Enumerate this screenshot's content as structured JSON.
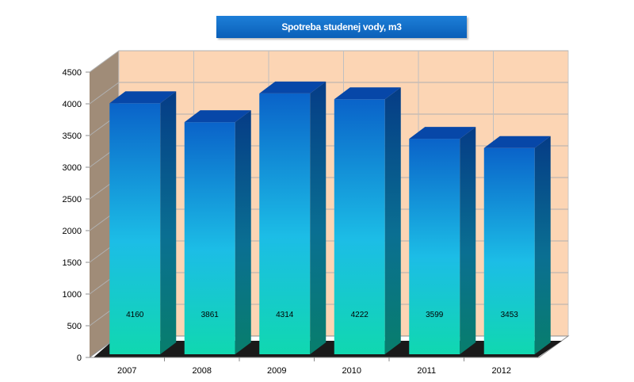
{
  "chart_data": {
    "type": "bar",
    "title": "Spotreba studenej vody, m3",
    "categories": [
      "2007",
      "2008",
      "2009",
      "2010",
      "2011",
      "2012"
    ],
    "values": [
      4160,
      3861,
      4314,
      4222,
      3599,
      3453
    ],
    "data_labels": [
      "4160",
      "3861",
      "4314",
      "4222",
      "3599",
      "3453"
    ],
    "ylim": [
      0,
      4500
    ],
    "y_ticks": [
      "0",
      "500",
      "1000",
      "1500",
      "2000",
      "2500",
      "3000",
      "3500",
      "4000",
      "4500"
    ],
    "xlabel": "",
    "ylabel": "",
    "grid": true,
    "legend": "none",
    "style": "3d-column",
    "colors": {
      "bar_top": "#0a63c9",
      "bar_bottom": "#14d8b8",
      "wall": "#fcd5b4",
      "side_wall": "#a08c78",
      "title_bg": "#0a64c0"
    }
  }
}
